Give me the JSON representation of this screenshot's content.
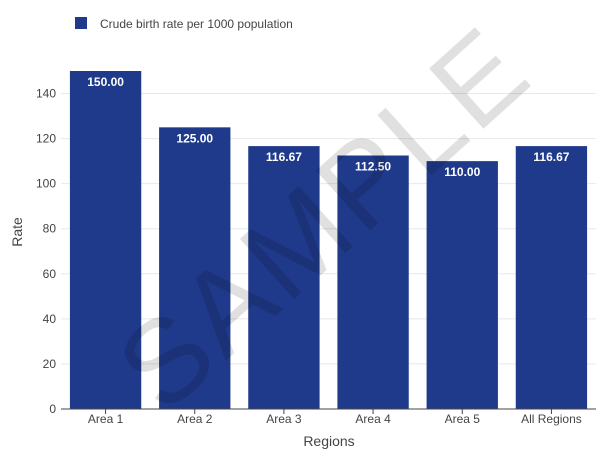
{
  "chart_data": {
    "type": "bar",
    "categories": [
      "Area 1",
      "Area 2",
      "Area 3",
      "Area 4",
      "Area 5",
      "All Regions"
    ],
    "series": [
      {
        "name": "Crude birth rate per 1000 population",
        "values": [
          150.0,
          125.0,
          116.67,
          112.5,
          110.0,
          116.67
        ],
        "data_labels": [
          "150.00",
          "125.00",
          "116.67",
          "112.50",
          "110.00",
          "116.67"
        ]
      }
    ],
    "xlabel": "Regions",
    "ylabel": "Rate",
    "ylim": [
      0,
      150
    ],
    "yticks": [
      0,
      20,
      40,
      60,
      80,
      100,
      120,
      140
    ],
    "grid": true,
    "legend_position": "top-left",
    "bar_color": "#1f3a8a",
    "grid_color": "#e8e8e8",
    "axis_color": "#444444"
  },
  "watermark": "SAMPLE"
}
